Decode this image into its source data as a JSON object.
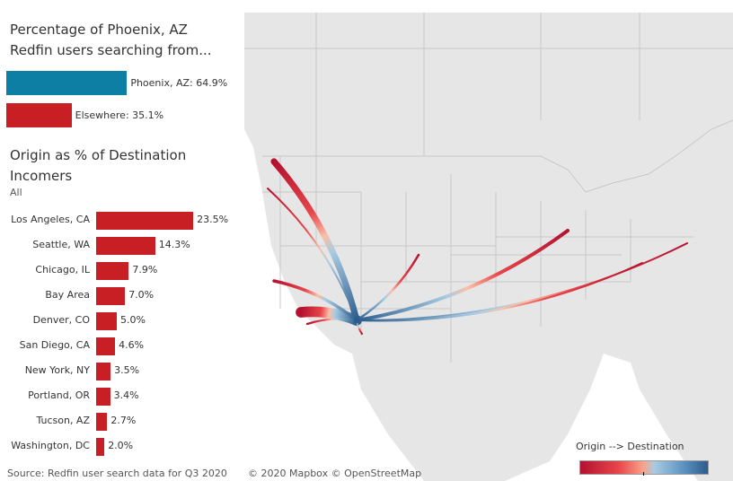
{
  "share": {
    "title": "Percentage of Phoenix, AZ Redfin users searching from...",
    "items": [
      {
        "label": "Phoenix, AZ: 64.9%",
        "value": 64.9,
        "color": "#0d7fa5"
      },
      {
        "label": "Elsewhere: 35.1%",
        "value": 35.1,
        "color": "#c81f24"
      }
    ]
  },
  "origins": {
    "title": "Origin as % of Destination Incomers",
    "filter": "All",
    "color": "#c81f24",
    "rows": [
      {
        "label": "Los Angeles, CA",
        "value": 23.5,
        "value_label": "23.5%"
      },
      {
        "label": "Seattle, WA",
        "value": 14.3,
        "value_label": "14.3%"
      },
      {
        "label": "Chicago, IL",
        "value": 7.9,
        "value_label": "7.9%"
      },
      {
        "label": "Bay Area",
        "value": 7.0,
        "value_label": "7.0%"
      },
      {
        "label": "Denver, CO",
        "value": 5.0,
        "value_label": "5.0%"
      },
      {
        "label": "San Diego, CA",
        "value": 4.6,
        "value_label": "4.6%"
      },
      {
        "label": "New York, NY",
        "value": 3.5,
        "value_label": "3.5%"
      },
      {
        "label": "Portland, OR",
        "value": 3.4,
        "value_label": "3.4%"
      },
      {
        "label": "Tucson, AZ",
        "value": 2.7,
        "value_label": "2.7%"
      },
      {
        "label": "Washington, DC",
        "value": 2.0,
        "value_label": "2.0%"
      }
    ]
  },
  "map": {
    "legend_title": "Origin --> Destination",
    "origin_color": "#b3112f",
    "destination_color": "#2c5b8c",
    "credit": "© 2020 Mapbox © OpenStreetMap"
  },
  "source": "Source: Redfin user search data for Q3 2020"
}
